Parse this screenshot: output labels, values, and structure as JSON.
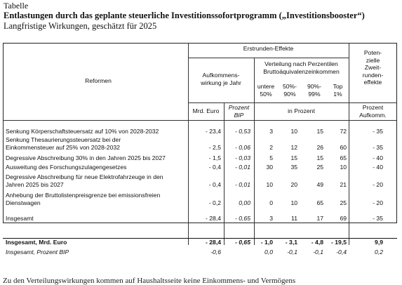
{
  "caption": {
    "label": "Tabelle",
    "title": "Entlastungen durch das geplante steuerliche Investitionssofortprogramm („Investitionsbooster“)",
    "subtitle": "Langfristige Wirkungen, geschätzt für 2025"
  },
  "header": {
    "reformen": "Reformen",
    "erstrunden": "Erstrunden-Effekte",
    "aufkommen_line1": "Aufkommens-",
    "aufkommen_line2": "wirkung je Jahr",
    "verteilung_line1": "Verteilung nach Perzentilen",
    "verteilung_line2": "Bruttoäquivalenzeinkommen",
    "zweit_lines": [
      "Poten-",
      "zielle",
      "Zweit-",
      "runden-",
      "effekte"
    ],
    "perc": [
      {
        "l1": "untere",
        "l2": "50%"
      },
      {
        "l1": "50%-",
        "l2": "90%"
      },
      {
        "l1": "90%-",
        "l2": "99%"
      },
      {
        "l1": "Top",
        "l2": "1%"
      }
    ],
    "unit_mrd": "Mrd. Euro",
    "unit_bip_l1": "Prozent",
    "unit_bip_l2": "BIP",
    "unit_inprozent": "in Prozent",
    "unit_zweit_l1": "Prozent",
    "unit_zweit_l2": "Aufkomm."
  },
  "rows": [
    {
      "label": [
        "Senkung Körperschaftsteuersatz auf 10% von 2028-2032"
      ],
      "mrd": "- 23,4",
      "bip": "- 0,53",
      "p1": "3",
      "p2": "10",
      "p3": "15",
      "p4": "72",
      "zweit": "- 35"
    },
    {
      "label": [
        "Senkung Thesaurierungssteuersatz bei der",
        "Einkommensteuer auf 25% von 2028-2032"
      ],
      "mrd": "- 2,5",
      "bip": "- 0,06",
      "p1": "2",
      "p2": "12",
      "p3": "26",
      "p4": "60",
      "zweit": "- 35"
    },
    {
      "label": [
        "Degressive Abschreibung 30% in den Jahren 2025 bis 2027"
      ],
      "mrd": "- 1,5",
      "bip": "- 0,03",
      "p1": "5",
      "p2": "15",
      "p3": "15",
      "p4": "65",
      "zweit": "- 40"
    },
    {
      "label": [
        "Ausweitung des Forschungszulagengesetzes"
      ],
      "mrd": "- 0,4",
      "bip": "- 0,01",
      "p1": "30",
      "p2": "35",
      "p3": "25",
      "p4": "10",
      "zweit": "- 40"
    },
    {
      "label": [
        "Degressive Abschreibung für neue Elektrofahrzeuge in den",
        "Jahren 2025 bis 2027"
      ],
      "mrd": "- 0,4",
      "bip": "- 0,01",
      "p1": "10",
      "p2": "20",
      "p3": "49",
      "p4": "21",
      "zweit": "- 20"
    },
    {
      "label": [
        "Anhebung der Bruttolistenpreisgrenze bei emissionsfreien",
        "Dienstwagen"
      ],
      "mrd": "- 0,2",
      "bip": "0,00",
      "p1": "0",
      "p2": "10",
      "p3": "65",
      "p4": "25",
      "zweit": "- 20"
    },
    {
      "label": [
        "Insgesamt"
      ],
      "mrd": "- 28,4",
      "bip": "- 0,65",
      "p1": "3",
      "p2": "11",
      "p3": "17",
      "p4": "69",
      "zweit": "- 35"
    }
  ],
  "totals": {
    "mrd_row": {
      "label": "Insgesamt, Mrd. Euro",
      "mrd": "- 28,4",
      "bip": "- 0,65",
      "p1": "- 1,0",
      "p2": "- 3,1",
      "p3": "- 4,8",
      "p4": "- 19,5",
      "zweit": "9,9"
    },
    "bip_row": {
      "label": "Insgesamt, Prozent BIP",
      "mrd": "-0,6",
      "p1": "0,0",
      "p2": "-0,1",
      "p3": "-0,1",
      "p4": "-0,4",
      "zweit": "0,2"
    }
  },
  "footer_text": "Zu den Verteilungswirkungen kommen auf Haushaltsseite keine Einkommens- und Vermögens"
}
